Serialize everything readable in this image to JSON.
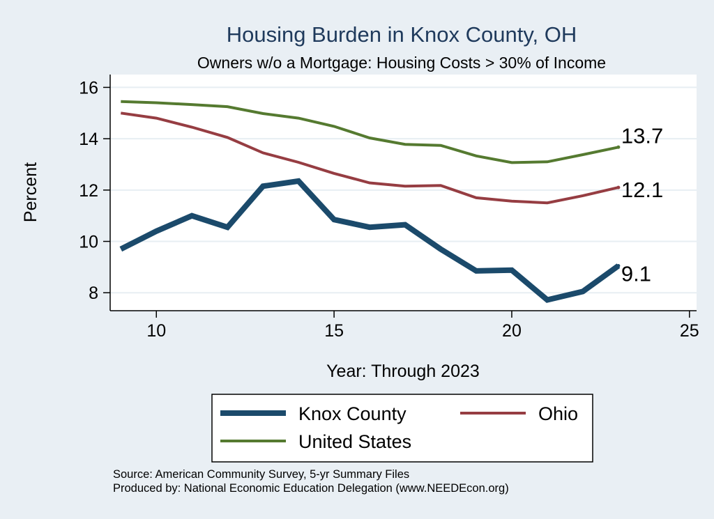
{
  "title": "Housing Burden in Knox County, OH",
  "subtitle": "Owners w/o a Mortgage: Housing Costs > 30% of Income",
  "colors": {
    "background": "#e9eff4",
    "plot_background": "#ffffff",
    "grid": "#e7eef3",
    "title": "#1f3a5c"
  },
  "chart_data": {
    "type": "line",
    "title": "Housing Burden in Knox County, OH",
    "subtitle": "Owners w/o a Mortgage: Housing Costs > 30% of Income",
    "xlabel": "Year: Through 2023",
    "ylabel": "Percent",
    "xlim": [
      8.7,
      25.2
    ],
    "ylim": [
      7.3,
      16.5
    ],
    "xticks": [
      10,
      15,
      20,
      25
    ],
    "yticks": [
      8,
      10,
      12,
      14,
      16
    ],
    "grid": true,
    "legend_position": "bottom",
    "series": [
      {
        "name": "Knox County",
        "color": "#1b4a6b",
        "x": [
          9,
          10,
          11,
          12,
          13,
          14,
          15,
          16,
          17,
          18,
          19,
          20,
          21,
          22,
          23
        ],
        "values": [
          9.7,
          10.4,
          11.0,
          10.55,
          12.15,
          12.35,
          10.85,
          10.55,
          10.65,
          9.7,
          8.85,
          8.88,
          7.72,
          8.05,
          9.05
        ],
        "end_label": "9.1"
      },
      {
        "name": "Ohio",
        "color": "#963d42",
        "x": [
          9,
          10,
          11,
          12,
          13,
          14,
          15,
          16,
          17,
          18,
          19,
          20,
          21,
          22,
          23
        ],
        "values": [
          15.0,
          14.8,
          14.45,
          14.05,
          13.45,
          13.08,
          12.65,
          12.28,
          12.15,
          12.18,
          11.7,
          11.57,
          11.5,
          11.78,
          12.1
        ],
        "end_label": "12.1"
      },
      {
        "name": "United States",
        "color": "#557a30",
        "x": [
          9,
          10,
          11,
          12,
          13,
          14,
          15,
          16,
          17,
          18,
          19,
          20,
          21,
          22,
          23
        ],
        "values": [
          15.45,
          15.4,
          15.33,
          15.25,
          14.98,
          14.8,
          14.48,
          14.03,
          13.78,
          13.74,
          13.33,
          13.07,
          13.1,
          13.38,
          13.67
        ],
        "end_label": "13.7"
      }
    ],
    "notes": [
      "Source: American Community Survey, 5-yr Summary Files",
      "Produced by: National Economic Education Delegation (www.NEEDEcon.org)"
    ]
  }
}
